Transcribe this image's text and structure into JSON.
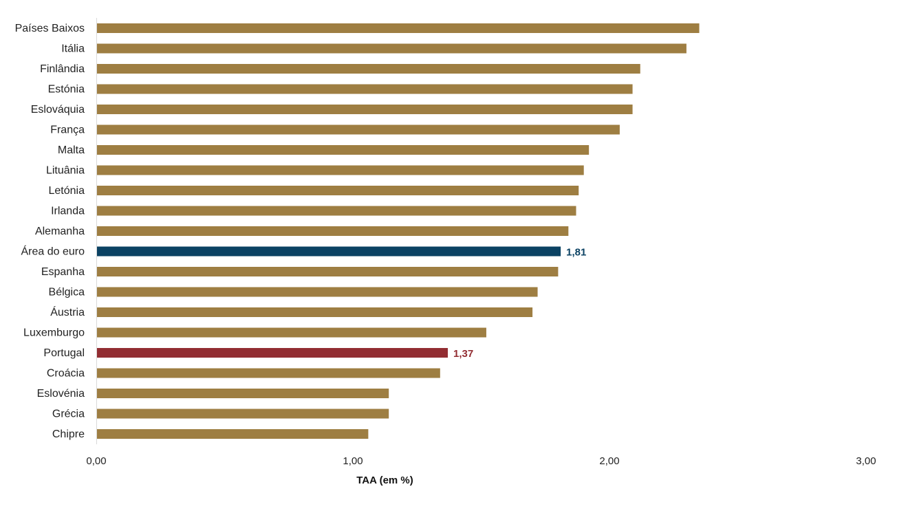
{
  "chart_data": {
    "type": "bar",
    "orientation": "horizontal",
    "categories": [
      "Países Baixos",
      "Itália",
      "Finlândia",
      "Estónia",
      "Eslováquia",
      "França",
      "Malta",
      "Lituânia",
      "Letónia",
      "Irlanda",
      "Alemanha",
      "Área do euro",
      "Espanha",
      "Bélgica",
      "Áustria",
      "Luxemburgo",
      "Portugal",
      "Croácia",
      "Eslovénia",
      "Grécia",
      "Chipre"
    ],
    "values": [
      2.35,
      2.3,
      2.12,
      2.09,
      2.09,
      2.04,
      1.92,
      1.9,
      1.88,
      1.87,
      1.84,
      1.81,
      1.8,
      1.72,
      1.7,
      1.52,
      1.37,
      1.34,
      1.14,
      1.14,
      1.06
    ],
    "colors": [
      "#9e7e42",
      "#9e7e42",
      "#9e7e42",
      "#9e7e42",
      "#9e7e42",
      "#9e7e42",
      "#9e7e42",
      "#9e7e42",
      "#9e7e42",
      "#9e7e42",
      "#9e7e42",
      "#0b4263",
      "#9e7e42",
      "#9e7e42",
      "#9e7e42",
      "#9e7e42",
      "#922d32",
      "#9e7e42",
      "#9e7e42",
      "#9e7e42",
      "#9e7e42"
    ],
    "data_labels": [
      {
        "category": "Área do euro",
        "text": "1,81",
        "color": "#0b4263"
      },
      {
        "category": "Portugal",
        "text": "1,37",
        "color": "#922d32"
      }
    ],
    "xlim": [
      0,
      3
    ],
    "x_ticks": [
      0,
      1,
      2,
      3
    ],
    "x_tick_labels": [
      "0,00",
      "1,00",
      "2,00",
      "3,00"
    ],
    "xlabel": "TAA (em %)",
    "ylabel": "",
    "title": "",
    "grid": false,
    "legend": "none"
  }
}
